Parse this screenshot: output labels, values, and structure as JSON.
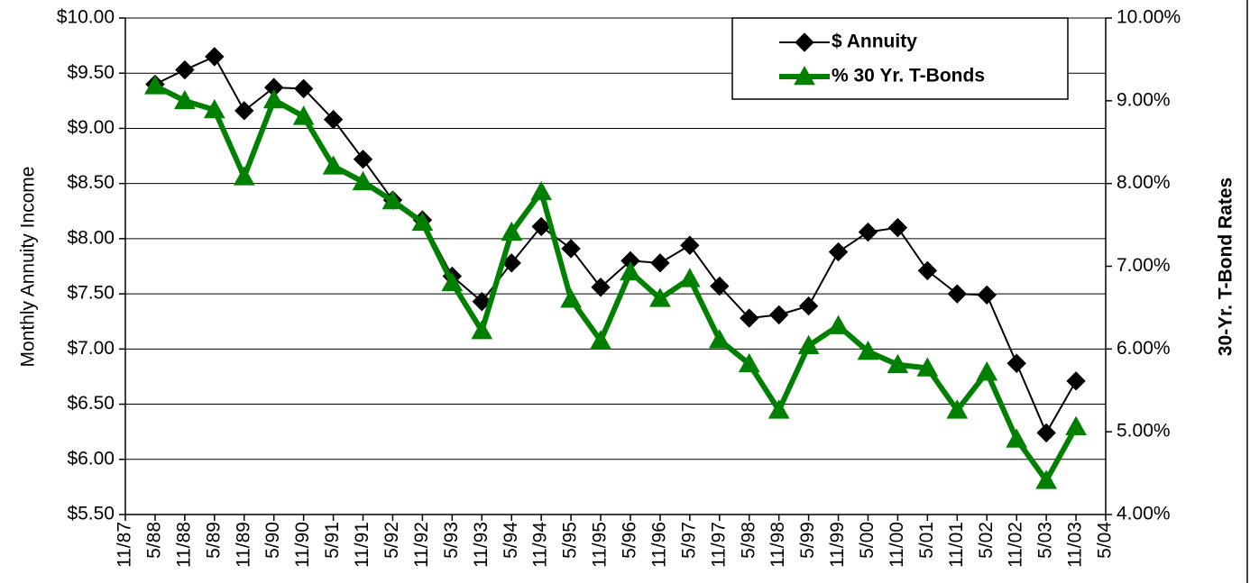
{
  "chart_data": {
    "type": "line",
    "y_label": "Monthly Annuity Income",
    "y2_label": "30-Yr. T-Bond Rates",
    "categories": [
      "11/87",
      "5/88",
      "11/88",
      "5/89",
      "11/89",
      "5/90",
      "11/90",
      "5/91",
      "11/91",
      "5/92",
      "11/92",
      "5/93",
      "11/93",
      "5/94",
      "11/94",
      "5/95",
      "11/95",
      "5/96",
      "11/96",
      "5/97",
      "11/97",
      "5/98",
      "11/98",
      "5/99",
      "11/99",
      "5/00",
      "11/00",
      "5/01",
      "11/01",
      "5/02",
      "11/02",
      "5/03",
      "11/03",
      "5/04"
    ],
    "series": [
      {
        "name": "$ Annuity",
        "color": "#000000",
        "marker": "diamond",
        "values": [
          null,
          9.4,
          9.53,
          9.65,
          9.16,
          9.37,
          9.36,
          9.08,
          8.72,
          8.35,
          8.17,
          7.66,
          7.43,
          7.78,
          8.11,
          7.91,
          7.56,
          7.8,
          7.78,
          7.94,
          7.57,
          7.28,
          7.31,
          7.39,
          7.88,
          8.06,
          8.1,
          7.71,
          7.5,
          7.49,
          6.87,
          6.24,
          6.71,
          null
        ]
      },
      {
        "name": "% 30 Yr. T-Bonds",
        "color": "#008000",
        "marker": "triangle",
        "axis": "y2",
        "values": [
          null,
          9.18,
          9.0,
          8.89,
          8.08,
          9.01,
          8.81,
          8.21,
          8.02,
          7.79,
          7.53,
          6.8,
          6.22,
          7.41,
          7.9,
          6.6,
          6.1,
          6.93,
          6.61,
          6.85,
          6.11,
          5.82,
          5.26,
          6.04,
          6.28,
          5.97,
          5.81,
          5.77,
          5.26,
          5.72,
          4.91,
          4.41,
          5.06,
          null
        ]
      }
    ],
    "ylim": [
      5.5,
      10
    ],
    "yticks": [
      {
        "value": 5.5,
        "label": "$5.50"
      },
      {
        "value": 6,
        "label": "$6.00"
      },
      {
        "value": 6.5,
        "label": "$6.50"
      },
      {
        "value": 7,
        "label": "$7.00"
      },
      {
        "value": 7.5,
        "label": "$7.50"
      },
      {
        "value": 8,
        "label": "$8.00"
      },
      {
        "value": 8.5,
        "label": "$8.50"
      },
      {
        "value": 9,
        "label": "$9.00"
      },
      {
        "value": 9.5,
        "label": "$9.50"
      },
      {
        "value": 10,
        "label": "$10.00"
      }
    ],
    "y2lim": [
      4,
      10
    ],
    "y2ticks": [
      {
        "value": 4,
        "label": "4.00%"
      },
      {
        "value": 5,
        "label": "5.00%"
      },
      {
        "value": 6,
        "label": "6.00%"
      },
      {
        "value": 7,
        "label": "7.00%"
      },
      {
        "value": 8,
        "label": "8.00%"
      },
      {
        "value": 9,
        "label": "9.00%"
      },
      {
        "value": 10,
        "label": "10.00%"
      }
    ],
    "grid": true,
    "legend": "upper right"
  }
}
